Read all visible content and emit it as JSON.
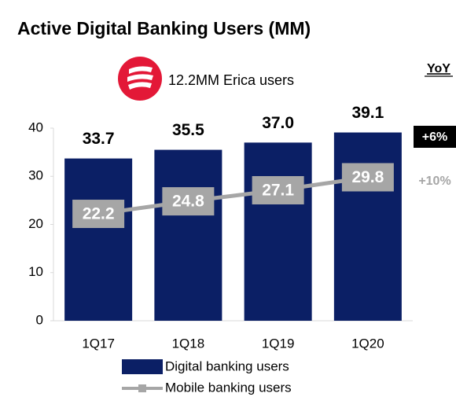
{
  "chart_data": {
    "type": "bar_line",
    "title": "Active Digital Banking Users (MM)",
    "annotation": "12.2MM Erica users",
    "yoy_header": "YoY",
    "categories": [
      "1Q17",
      "1Q18",
      "1Q19",
      "1Q20"
    ],
    "series": [
      {
        "name": "Digital banking users",
        "type": "bar",
        "color": "#0b1f65",
        "values": [
          33.7,
          35.5,
          37.0,
          39.1
        ],
        "value_labels": [
          "33.7",
          "35.5",
          "37.0",
          "39.1"
        ],
        "yoy": "+6%"
      },
      {
        "name": "Mobile banking users",
        "type": "line",
        "color": "#a6a6a6",
        "values": [
          22.2,
          24.8,
          27.1,
          29.8
        ],
        "value_labels": [
          "22.2",
          "24.8",
          "27.1",
          "29.8"
        ],
        "yoy": "+10%"
      }
    ],
    "ylim": [
      0,
      40
    ],
    "yticks": [
      0,
      10,
      20,
      30,
      40
    ]
  }
}
